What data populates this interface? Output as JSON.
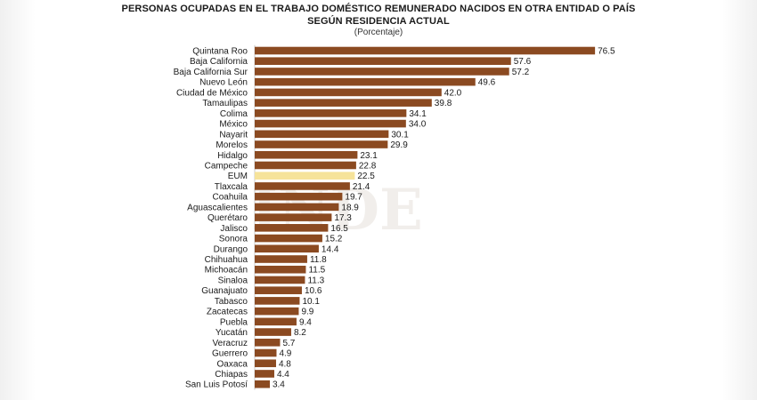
{
  "chart_data": {
    "type": "bar",
    "orientation": "horizontal",
    "title_lines": [
      "PERSONAS OCUPADAS EN EL TRABAJO DOMÉSTICO REMUNERADO NACIDOS EN OTRA ENTIDAD O PAÍS",
      "SEGÚN RESIDENCIA ACTUAL"
    ],
    "subtitle": "(Porcentaje)",
    "categories": [
      "Quintana Roo",
      "Baja California",
      "Baja California Sur",
      "Nuevo León",
      "Ciudad de México",
      "Tamaulipas",
      "Colima",
      "México",
      "Nayarit",
      "Morelos",
      "Hidalgo",
      "Campeche",
      "EUM",
      "Tlaxcala",
      "Coahuila",
      "Aguascalientes",
      "Querétaro",
      "Jalisco",
      "Sonora",
      "Durango",
      "Chihuahua",
      "Michoacán",
      "Sinaloa",
      "Guanajuato",
      "Tabasco",
      "Zacatecas",
      "Puebla",
      "Yucatán",
      "Veracruz",
      "Guerrero",
      "Oaxaca",
      "Chiapas",
      "San Luis Potosí"
    ],
    "values": [
      76.5,
      57.6,
      57.2,
      49.6,
      42.0,
      39.8,
      34.1,
      34.0,
      30.1,
      29.9,
      23.1,
      22.8,
      22.5,
      21.4,
      19.7,
      18.9,
      17.3,
      16.5,
      15.2,
      14.4,
      11.8,
      11.5,
      11.3,
      10.6,
      10.1,
      9.9,
      9.4,
      8.2,
      5.7,
      4.9,
      4.8,
      4.4,
      3.4
    ],
    "value_labels": [
      "76.5",
      "57.6",
      "57.2",
      "49.6",
      "42.0",
      "39.8",
      "34.1",
      "34.0",
      "30.1",
      "29.9",
      "23.1",
      "22.8",
      "22.5",
      "21.4",
      "19.7",
      "18.9",
      "17.3",
      "16.5",
      "15.2",
      "14.4",
      "11.8",
      "11.5",
      "11.3",
      "10.6",
      "10.1",
      "9.9",
      "9.4",
      "8.2",
      "5.7",
      "4.9",
      "4.8",
      "4.4",
      "3.4"
    ],
    "highlight_category": "EUM",
    "bar_color": "#8b4a21",
    "highlight_color": "#f6e39a",
    "xlim": [
      0,
      80
    ],
    "grid": false,
    "legend": "none"
  },
  "watermark_text": "INDE"
}
